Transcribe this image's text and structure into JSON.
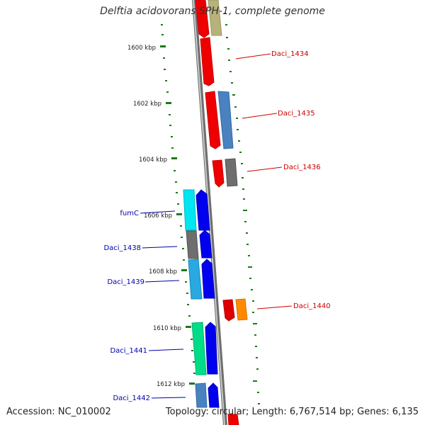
{
  "title": "Delftia acidovorans SPH-1, complete genome",
  "accession": "Accession: NC_010002",
  "summary": "Topology: circular; Length: 6,767,514 bp; Genes: 6,135",
  "ticks": [
    "1600 kbp",
    "1602 kbp",
    "1604 kbp",
    "1606 kbp",
    "1608 kbp",
    "1610 kbp",
    "1612 kbp"
  ],
  "labels": {
    "daci_1434": "Daci_1434",
    "daci_1435": "Daci_1435",
    "daci_1436": "Daci_1436",
    "fumc": "fumC",
    "daci_1438": "Daci_1438",
    "daci_1439": "Daci_1439",
    "daci_1440": "Daci_1440",
    "daci_1441": "Daci_1441",
    "daci_1442": "Daci_1442"
  },
  "colors": {
    "forward_label": "#cc0000",
    "reverse_label": "#0000aa",
    "tick_mark": "#1a7a1a",
    "backbone": "#888888"
  }
}
